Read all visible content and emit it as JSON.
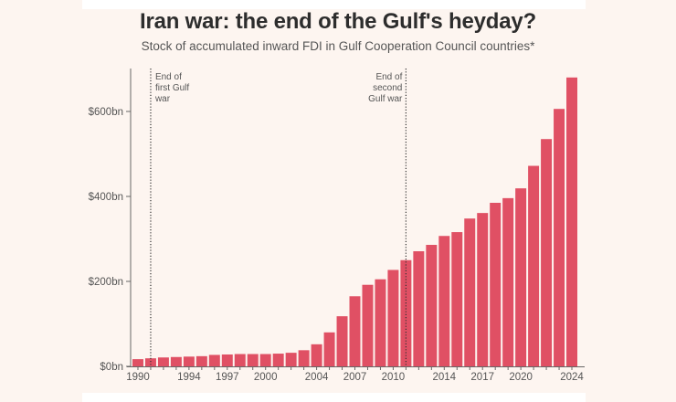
{
  "header": {
    "title": "Iran war: the end of the Gulf's heyday?",
    "subtitle": "Stock of accumulated inward FDI in Gulf Cooperation Council countries*"
  },
  "colors": {
    "bar": "#e05064",
    "background": "#fdf5f0",
    "axis": "#666666",
    "text": "#555555"
  },
  "chart_data": {
    "type": "bar",
    "title": "Iran war: the end of the Gulf's heyday?",
    "subtitle": "Stock of accumulated inward FDI in Gulf Cooperation Council countries*",
    "xlabel": "",
    "ylabel": "",
    "ylim": [
      0,
      700
    ],
    "grid": false,
    "yticks": [
      0,
      200,
      400,
      600
    ],
    "ytick_labels": [
      "$0bn",
      "$200bn",
      "$400bn",
      "$600bn"
    ],
    "xtick_labels": [
      "1990",
      "1994",
      "1997",
      "2000",
      "2004",
      "2007",
      "2010",
      "2014",
      "2017",
      "2020",
      "2024"
    ],
    "categories": [
      1990,
      1991,
      1992,
      1993,
      1994,
      1995,
      1996,
      1997,
      1998,
      1999,
      2000,
      2001,
      2002,
      2003,
      2004,
      2005,
      2006,
      2007,
      2008,
      2009,
      2010,
      2011,
      2012,
      2013,
      2014,
      2015,
      2016,
      2017,
      2018,
      2019,
      2020,
      2021,
      2022,
      2023,
      2024
    ],
    "series": [
      {
        "name": "Inward FDI stock ($bn)",
        "values": [
          17,
          19,
          21,
          22,
          23,
          24,
          27,
          28,
          29,
          29,
          29,
          30,
          32,
          38,
          52,
          80,
          118,
          165,
          192,
          205,
          227,
          250,
          271,
          286,
          307,
          316,
          348,
          361,
          385,
          396,
          419,
          472,
          535,
          606,
          680
        ]
      }
    ],
    "annotations": [
      {
        "year": 1991,
        "lines": [
          "End of",
          "first Gulf",
          "war"
        ],
        "side": "right"
      },
      {
        "year": 2011,
        "lines": [
          "End of",
          "second",
          "Gulf war"
        ],
        "side": "left"
      }
    ]
  }
}
